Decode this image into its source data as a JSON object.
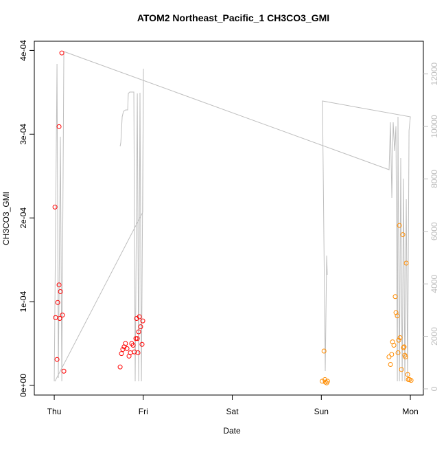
{
  "chart_data": {
    "type": "scatter",
    "title": "ATOM2 Northeast_Pacific_1 CH3CO3_GMI",
    "x_label": "Date",
    "y_label": "CH3CO3_GMI",
    "xlim": [
      -0.224,
      4.146
    ],
    "xticks": [
      {
        "value": 0,
        "label": "Thu"
      },
      {
        "value": 1,
        "label": "Fri"
      },
      {
        "value": 2,
        "label": "Sat"
      },
      {
        "value": 3,
        "label": "Sun"
      },
      {
        "value": 4,
        "label": "Mon"
      }
    ],
    "ylim": [
      -1.15e-05,
      0.000411
    ],
    "yticks": [
      {
        "value": 0,
        "label": "0e+00"
      },
      {
        "value": 0.0001,
        "label": "1e-04"
      },
      {
        "value": 0.0002,
        "label": "2e-04"
      },
      {
        "value": 0.0003,
        "label": "3e-04"
      },
      {
        "value": 0.0004,
        "label": "4e-04"
      }
    ],
    "y2lim": [
      -236,
      13247
    ],
    "y2ticks": [
      0,
      2000,
      4000,
      6000,
      8000,
      10000,
      12000
    ],
    "y2_color": "#bebebe",
    "series": [
      {
        "type": "scatter",
        "color": "#ff0000",
        "x": [
          0.008,
          0.015,
          0.031,
          0.039,
          0.054,
          0.054,
          0.062,
          0.069,
          0.085,
          0.092,
          0.108,
          0.74,
          0.755,
          0.77,
          0.785,
          0.8,
          0.817,
          0.84,
          0.855,
          0.87,
          0.886,
          0.9,
          0.917,
          0.925,
          0.933,
          0.94,
          0.948,
          0.956,
          0.97,
          0.986,
          0.994
        ],
        "values": [
          0.000213,
          8.1e-05,
          3.1e-05,
          9.9e-05,
          0.000309,
          0.00012,
          8e-05,
          0.000112,
          0.000397,
          8.4e-05,
          1.7e-05,
          2.2e-05,
          3.8e-05,
          4.3e-05,
          4.6e-05,
          5e-05,
          4.4e-05,
          3.5e-05,
          3.9e-05,
          5e-05,
          4.8e-05,
          4e-05,
          5.6e-05,
          8e-05,
          5.6e-05,
          3.9e-05,
          6.4e-05,
          8.2e-05,
          7e-05,
          4.9e-05,
          7.7e-05
        ]
      },
      {
        "type": "scatter",
        "color": "#ff8c00",
        "x": [
          3.01,
          3.03,
          3.04,
          3.045,
          3.06,
          3.07,
          3.76,
          3.777,
          3.79,
          3.8,
          3.815,
          3.83,
          3.838,
          3.853,
          3.861,
          3.869,
          3.877,
          3.884,
          3.9,
          3.915,
          3.923,
          3.93,
          3.938,
          3.946,
          3.954,
          3.97,
          3.977,
          3.99,
          4.008
        ],
        "values": [
          5e-06,
          4.1e-05,
          7e-06,
          4e-06,
          3e-06,
          5e-06,
          3.4e-05,
          2.5e-05,
          3.7e-05,
          5.2e-05,
          4.8e-05,
          0.000106,
          8.7e-05,
          8.3e-05,
          3.9e-05,
          5.4e-05,
          0.000191,
          5.7e-05,
          1.9e-05,
          0.00018,
          4.5e-05,
          4.6e-05,
          3.6e-05,
          3.4e-05,
          0.000146,
          1.3e-05,
          7e-06,
          7e-06,
          6e-06
        ]
      },
      {
        "type": "line",
        "axis": "y2",
        "color": "#bebebe",
        "x": [
          0,
          0.031,
          0.046,
          0.069,
          0.085,
          0.108,
          3.761,
          3.776,
          3.792,
          3.807,
          3.823,
          3.838,
          3.854,
          3.861,
          3.877,
          3.892,
          3.908,
          3.923,
          3.938,
          3.954,
          3.969,
          3.985,
          4.0,
          3.013,
          3.044,
          3.06,
          3.067,
          null,
          0.008,
          0.994,
          1.002,
          0.979,
          0.963,
          0.948,
          0.933,
          0.909,
          0.894,
          0.848,
          0.832,
          0.825,
          0.802,
          0.778,
          0.763,
          0.748,
          0.74
        ],
        "values": [
          288,
          12383,
          419,
          9608,
          288,
          12854,
          8351,
          10158,
          7278,
          10158,
          9058,
          10007,
          288,
          10367,
          288,
          8796,
          288,
          8011,
          288,
          7226,
          288,
          9844,
          10367,
          10969,
          681,
          5079,
          4346,
          null,
          288,
          6728,
          12200,
          288,
          11284,
          288,
          11257,
          288,
          11310,
          11310,
          11257,
          10629,
          10629,
          10577,
          10367,
          9399,
          9241
        ]
      }
    ]
  }
}
